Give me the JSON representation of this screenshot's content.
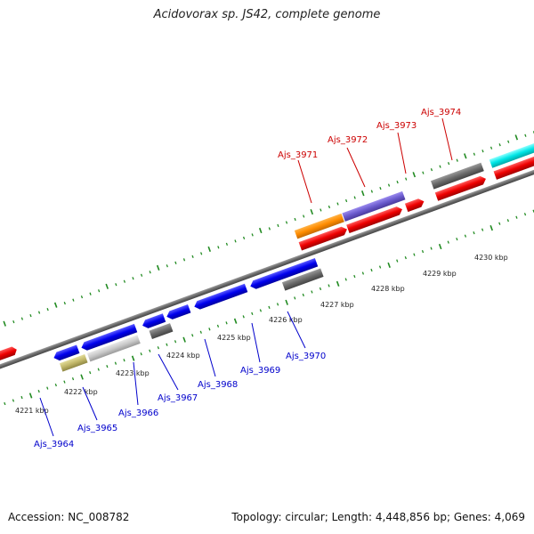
{
  "title": "Acidovorax sp. JS42, complete genome",
  "footer": {
    "accession": "Accession: NC_008782",
    "summary": "Topology: circular; Length: 4,448,856 bp; Genes: 4,069"
  },
  "colors": {
    "forward_label": "#cc0000",
    "reverse_label": "#0000cc",
    "backbone": "#888888",
    "tick": "#228b22"
  },
  "kbp_labels": [
    "4221 kbp",
    "4222 kbp",
    "4223 kbp",
    "4224 kbp",
    "4225 kbp",
    "4226 kbp",
    "4227 kbp",
    "4228 kbp",
    "4229 kbp",
    "4230 kbp"
  ],
  "forward_genes": [
    "Ajs_3971",
    "Ajs_3972",
    "Ajs_3973",
    "Ajs_3974"
  ],
  "reverse_genes": [
    "Ajs_3964",
    "Ajs_3965",
    "Ajs_3966",
    "Ajs_3967",
    "Ajs_3968",
    "Ajs_3969",
    "Ajs_3970"
  ]
}
